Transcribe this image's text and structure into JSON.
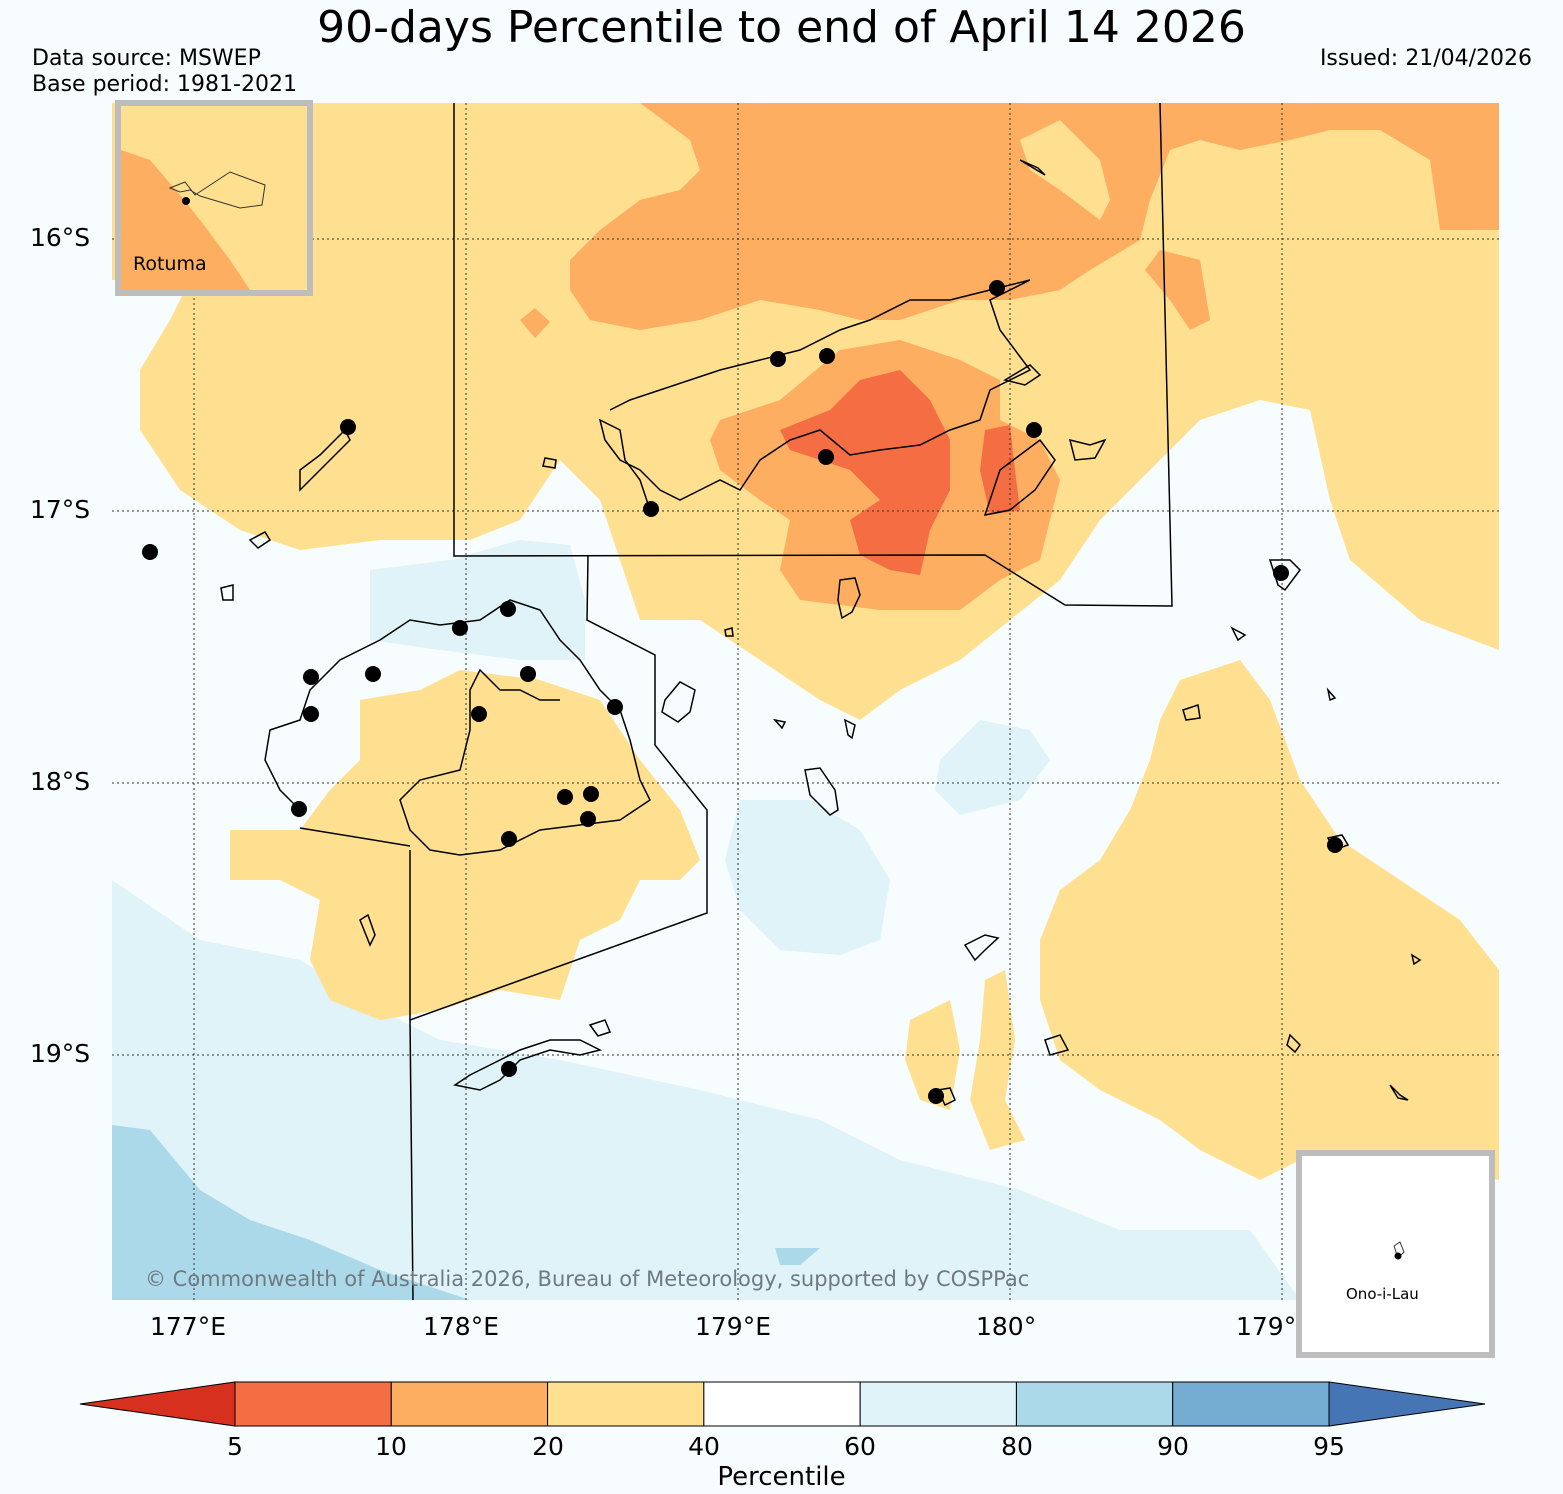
{
  "title": "90-days Percentile to end of April 14 2026",
  "data_source": "Data source: MSWEP",
  "base_period": "Base period: 1981-2021",
  "issued": "Issued: 21/04/2026",
  "lat_labels": [
    "16°S",
    "17°S",
    "18°S",
    "19°S"
  ],
  "lon_labels": [
    "177°E",
    "178°E",
    "179°E",
    "180°",
    "179°"
  ],
  "copyright": "© Commonwealth of Australia 2026, Bureau of Meteorology, supported by COSPPac",
  "inset_rotuma": "Rotuma",
  "inset_ono": "Ono-i-Lau",
  "colorbar": {
    "label": "Percentile",
    "ticks": [
      "5",
      "10",
      "20",
      "40",
      "60",
      "80",
      "90",
      "95"
    ],
    "colors": [
      "#d7301f",
      "#f46d43",
      "#fdae61",
      "#fee090",
      "#ffffff",
      "#e0f3f8",
      "#abd9e9",
      "#74add1",
      "#4575b4"
    ]
  }
}
